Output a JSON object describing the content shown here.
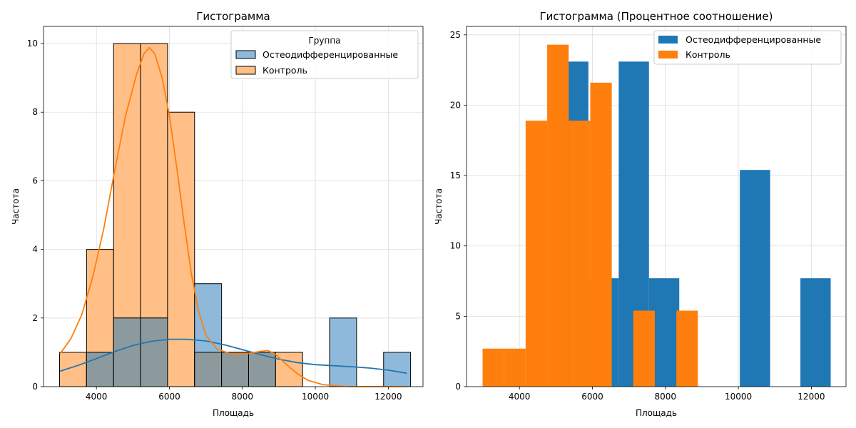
{
  "colors": {
    "blue": "#1f77b4",
    "orange": "#ff7f0e",
    "blue_light": "#8fb9da",
    "orange_light": "#ffbf86",
    "overlap": "#8d9a9d",
    "grid": "#dddddd"
  },
  "chart_data": [
    {
      "type": "bar",
      "title": "Гистограмма",
      "xlabel": "Площадь",
      "ylabel": "Частота",
      "xlim": [
        2550,
        12950
      ],
      "ylim": [
        0,
        10.5
      ],
      "xticks": [
        4000,
        6000,
        8000,
        10000,
        12000
      ],
      "yticks": [
        0,
        2,
        4,
        6,
        8,
        10
      ],
      "grid": true,
      "legend_title": "Группа",
      "legend_position": "top-right",
      "bin_edges": [
        2990,
        3730,
        4470,
        5210,
        5950,
        6690,
        7430,
        8170,
        8910,
        9650,
        10390,
        11130,
        11870,
        12610
      ],
      "series": [
        {
          "name": "Остеодифференцированные",
          "values": [
            0,
            1,
            2,
            2,
            0,
            3,
            1,
            1,
            0,
            0,
            2,
            0,
            1
          ],
          "kde": [
            [
              3000,
              0.45
            ],
            [
              3500,
              0.62
            ],
            [
              4000,
              0.82
            ],
            [
              4500,
              1.02
            ],
            [
              5000,
              1.2
            ],
            [
              5500,
              1.32
            ],
            [
              6000,
              1.38
            ],
            [
              6500,
              1.38
            ],
            [
              7000,
              1.33
            ],
            [
              7500,
              1.22
            ],
            [
              8000,
              1.08
            ],
            [
              8500,
              0.93
            ],
            [
              9000,
              0.8
            ],
            [
              9500,
              0.7
            ],
            [
              10000,
              0.64
            ],
            [
              10500,
              0.61
            ],
            [
              11000,
              0.58
            ],
            [
              11500,
              0.54
            ],
            [
              12000,
              0.48
            ],
            [
              12500,
              0.39
            ]
          ]
        },
        {
          "name": "Контроль",
          "values": [
            1,
            4,
            10,
            10,
            8,
            1,
            1,
            1,
            1,
            0,
            0,
            0,
            0
          ],
          "kde": [
            [
              3000,
              0.95
            ],
            [
              3300,
              1.4
            ],
            [
              3600,
              2.1
            ],
            [
              3900,
              3.2
            ],
            [
              4200,
              4.6
            ],
            [
              4500,
              6.3
            ],
            [
              4800,
              7.9
            ],
            [
              5100,
              9.1
            ],
            [
              5300,
              9.7
            ],
            [
              5450,
              9.88
            ],
            [
              5600,
              9.7
            ],
            [
              5800,
              9.0
            ],
            [
              6000,
              7.9
            ],
            [
              6200,
              6.4
            ],
            [
              6400,
              4.8
            ],
            [
              6600,
              3.3
            ],
            [
              6800,
              2.2
            ],
            [
              7000,
              1.5
            ],
            [
              7300,
              1.1
            ],
            [
              7700,
              0.95
            ],
            [
              8200,
              0.97
            ],
            [
              8500,
              1.03
            ],
            [
              8700,
              1.05
            ],
            [
              8900,
              0.95
            ],
            [
              9200,
              0.65
            ],
            [
              9500,
              0.38
            ],
            [
              9800,
              0.18
            ],
            [
              10200,
              0.06
            ],
            [
              10600,
              0.02
            ],
            [
              11000,
              0.0
            ],
            [
              12500,
              0.0
            ]
          ]
        }
      ]
    },
    {
      "type": "bar",
      "title": "Гистограмма (Процентное соотношение)",
      "xlabel": "Площадь",
      "ylabel": "Частота",
      "xlim": [
        2550,
        12950
      ],
      "ylim": [
        0,
        25.6
      ],
      "xticks": [
        4000,
        6000,
        8000,
        10000,
        12000
      ],
      "yticks": [
        0,
        5,
        10,
        15,
        20,
        25
      ],
      "grid": true,
      "legend_position": "top-right",
      "series": [
        {
          "name": "Остеодифференцированные",
          "bin_edges": [
            4230,
            5060,
            5890,
            6720,
            7550,
            8380,
            9210,
            10040,
            10870,
            11700,
            12530
          ],
          "values": [
            0,
            23.1,
            7.7,
            23.1,
            7.7,
            0,
            0,
            15.4,
            0,
            7.7
          ]
        },
        {
          "name": "Контроль",
          "bin_edges": [
            2990,
            3580,
            4170,
            4760,
            5350,
            5940,
            6530,
            7120,
            7710,
            8300,
            8890
          ],
          "values": [
            2.7,
            2.7,
            18.9,
            24.3,
            18.9,
            21.6,
            0,
            5.4,
            0,
            5.4
          ]
        }
      ]
    }
  ]
}
